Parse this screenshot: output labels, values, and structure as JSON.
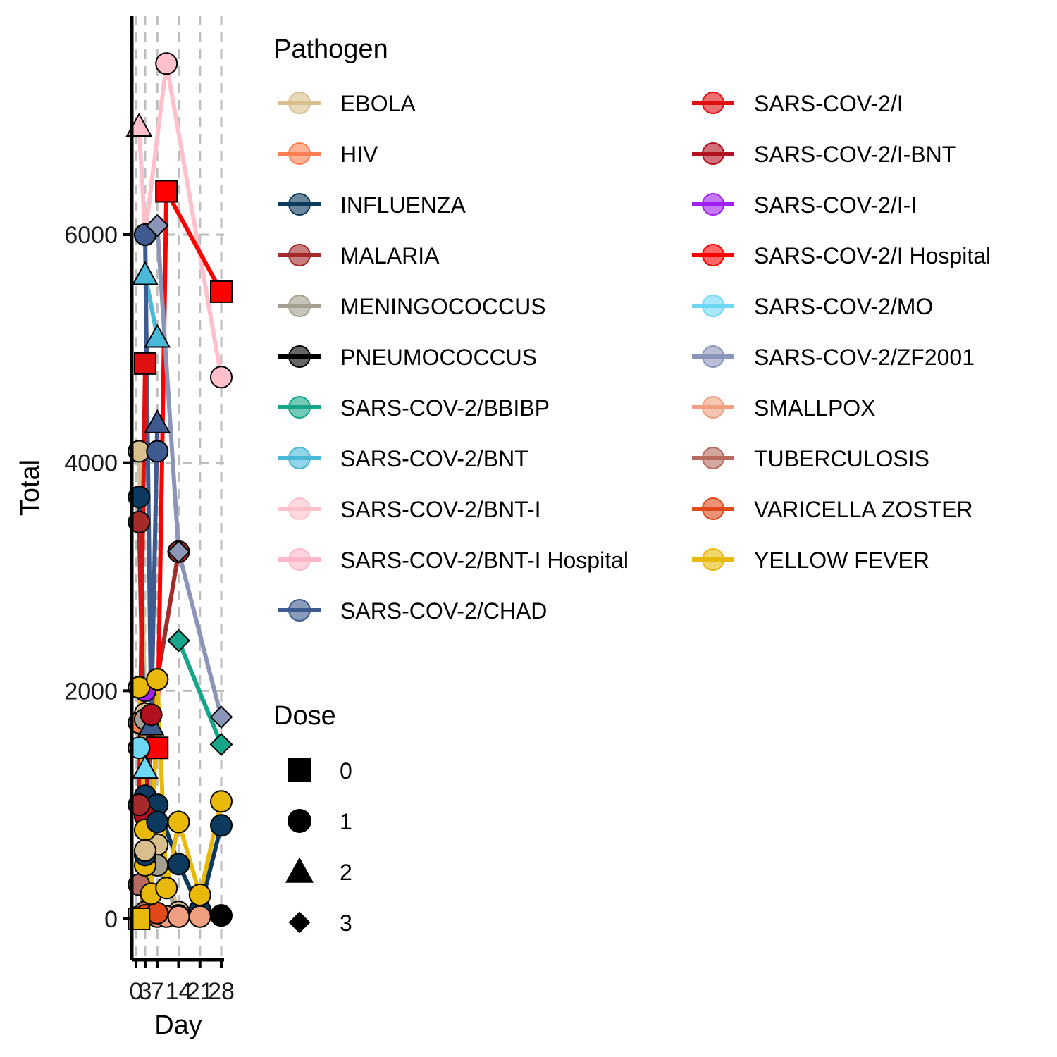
{
  "chart_data": {
    "type": "line",
    "xlabel": "Day",
    "ylabel": "Total",
    "x_ticks": [
      0,
      3,
      7,
      14,
      21,
      28
    ],
    "y_ticks": [
      0,
      2000,
      4000,
      6000
    ],
    "xlim": [
      -1,
      29
    ],
    "ylim": [
      -350,
      7600
    ],
    "grid": "dashed vertical lines at x ticks; short dashed horizontal segments at y ticks",
    "legend_pathogen_title": "Pathogen",
    "legend_dose_title": "Dose",
    "dose_shapes": [
      {
        "label": "0",
        "shape": "square"
      },
      {
        "label": "1",
        "shape": "circle"
      },
      {
        "label": "2",
        "shape": "triangle"
      },
      {
        "label": "3",
        "shape": "diamond"
      }
    ],
    "series": [
      {
        "name": "EBOLA",
        "color": "#D8C08E",
        "points": [
          {
            "x": 1,
            "y": 4100,
            "dose": "1"
          },
          {
            "x": 3,
            "y": 1800,
            "dose": "1"
          },
          {
            "x": 7,
            "y": 650,
            "dose": "1"
          },
          {
            "x": 14,
            "y": 60,
            "dose": "1"
          }
        ]
      },
      {
        "name": "HIV",
        "color": "#FF7F50",
        "points": [
          {
            "x": 1,
            "y": 1720,
            "dose": "1"
          },
          {
            "x": 3,
            "y": 60,
            "dose": "1"
          },
          {
            "x": 7,
            "y": 40,
            "dose": "1"
          }
        ]
      },
      {
        "name": "INFLUENZA",
        "color": "#0B3A5E",
        "points": [
          {
            "x": 1,
            "y": 3700,
            "dose": "1"
          },
          {
            "x": 3,
            "y": 1080,
            "dose": "1"
          },
          {
            "x": 7,
            "y": 1000,
            "dose": "1"
          },
          {
            "x": 14,
            "y": 480,
            "dose": "1"
          },
          {
            "x": 21,
            "y": 80,
            "dose": "1"
          },
          {
            "x": 28,
            "y": 820,
            "dose": "1"
          }
        ]
      },
      {
        "name": "MALARIA",
        "color": "#A52A2A",
        "points": [
          {
            "x": 1,
            "y": 3480,
            "dose": "1"
          },
          {
            "x": 3,
            "y": 900,
            "dose": "1"
          },
          {
            "x": 7,
            "y": 2100,
            "dose": "1"
          },
          {
            "x": 14,
            "y": 3220,
            "dose": "1"
          }
        ]
      },
      {
        "name": "MENINGOCOCCUS",
        "color": "#A3A090",
        "points": [
          {
            "x": 3,
            "y": 1750,
            "dose": "1"
          },
          {
            "x": 7,
            "y": 470,
            "dose": "1"
          },
          {
            "x": 14,
            "y": 30,
            "dose": "1"
          }
        ]
      },
      {
        "name": "PNEUMOCOCCUS",
        "color": "#000000",
        "points": [
          {
            "x": 1,
            "y": 20,
            "dose": "1"
          },
          {
            "x": 7,
            "y": 30,
            "dose": "1"
          },
          {
            "x": 14,
            "y": 20,
            "dose": "1"
          },
          {
            "x": 28,
            "y": 30,
            "dose": "1"
          }
        ]
      },
      {
        "name": "SARS-COV-2/BBIBP",
        "color": "#17A589",
        "points": [
          {
            "x": 14,
            "y": 2440,
            "dose": "3"
          },
          {
            "x": 28,
            "y": 1530,
            "dose": "3"
          }
        ]
      },
      {
        "name": "SARS-COV-2/BNT",
        "color": "#4AB8D8",
        "points": [
          {
            "x": 3,
            "y": 5650,
            "dose": "2"
          },
          {
            "x": 7,
            "y": 5100,
            "dose": "2"
          }
        ]
      },
      {
        "name": "SARS-COV-2/BNT-I",
        "color": "#FFC0CB",
        "points": [
          {
            "x": 1,
            "y": 6950,
            "dose": "2"
          },
          {
            "x": 3,
            "y": 6000,
            "dose": "1"
          },
          {
            "x": 10,
            "y": 7500,
            "dose": "1"
          },
          {
            "x": 28,
            "y": 4750,
            "dose": "1"
          }
        ]
      },
      {
        "name": "SARS-COV-2/BNT-I Hospital",
        "color": "#FFB6C8",
        "points": []
      },
      {
        "name": "SARS-COV-2/CHAD",
        "color": "#3E5A8E",
        "points": [
          {
            "x": 3,
            "y": 6000,
            "dose": "1"
          },
          {
            "x": 5,
            "y": 1700,
            "dose": "2"
          },
          {
            "x": 7,
            "y": 4350,
            "dose": "2"
          },
          {
            "x": 7,
            "y": 4100,
            "dose": "1"
          }
        ]
      },
      {
        "name": "SARS-COV-2/I",
        "color": "#E01010",
        "points": [
          {
            "x": 1,
            "y": 1000,
            "dose": "1"
          },
          {
            "x": 3,
            "y": 4870,
            "dose": "0"
          }
        ]
      },
      {
        "name": "SARS-COV-2/I-BNT",
        "color": "#B01020",
        "points": [
          {
            "x": 3,
            "y": 900,
            "dose": "1"
          },
          {
            "x": 5,
            "y": 1790,
            "dose": "1"
          }
        ]
      },
      {
        "name": "SARS-COV-2/I-I",
        "color": "#A020F0",
        "points": [
          {
            "x": 3,
            "y": 2000,
            "dose": "1"
          }
        ]
      },
      {
        "name": "SARS-COV-2/I Hospital",
        "color": "#FF0000",
        "points": [
          {
            "x": 7,
            "y": 1500,
            "dose": "0"
          },
          {
            "x": 10,
            "y": 6380,
            "dose": "0"
          },
          {
            "x": 28,
            "y": 5500,
            "dose": "0"
          }
        ]
      },
      {
        "name": "SARS-COV-2/MO",
        "color": "#6ED8F4",
        "points": [
          {
            "x": 1,
            "y": 1500,
            "dose": "1"
          },
          {
            "x": 3,
            "y": 1320,
            "dose": "2"
          }
        ]
      },
      {
        "name": "SARS-COV-2/ZF2001",
        "color": "#8A95B8",
        "points": [
          {
            "x": 7,
            "y": 6080,
            "dose": "3"
          },
          {
            "x": 14,
            "y": 3220,
            "dose": "3"
          },
          {
            "x": 28,
            "y": 1770,
            "dose": "3"
          }
        ]
      },
      {
        "name": "SMALLPOX",
        "color": "#F0A080",
        "points": [
          {
            "x": 7,
            "y": 20,
            "dose": "1"
          },
          {
            "x": 10,
            "y": 20,
            "dose": "1"
          },
          {
            "x": 14,
            "y": 20,
            "dose": "1"
          },
          {
            "x": 21,
            "y": 20,
            "dose": "1"
          }
        ]
      },
      {
        "name": "TUBERCULOSIS",
        "color": "#B86A60",
        "points": [
          {
            "x": 1,
            "y": 300,
            "dose": "1"
          },
          {
            "x": 3,
            "y": 60,
            "dose": "1"
          }
        ]
      },
      {
        "name": "VARICELLA ZOSTER",
        "color": "#E04A1A",
        "points": [
          {
            "x": 3,
            "y": 30,
            "dose": "1"
          },
          {
            "x": 7,
            "y": 50,
            "dose": "1"
          }
        ]
      },
      {
        "name": "YELLOW FEVER",
        "color": "#E8B80A",
        "points": [
          {
            "x": 1,
            "y": 2030,
            "dose": "1"
          },
          {
            "x": 3,
            "y": 780,
            "dose": "1"
          },
          {
            "x": 5,
            "y": 220,
            "dose": "1"
          },
          {
            "x": 7,
            "y": 2100,
            "dose": "1"
          },
          {
            "x": 10,
            "y": 270,
            "dose": "1"
          },
          {
            "x": 14,
            "y": 850,
            "dose": "1"
          },
          {
            "x": 21,
            "y": 210,
            "dose": "1"
          },
          {
            "x": 28,
            "y": 1030,
            "dose": "1"
          }
        ]
      }
    ],
    "extra_points": [
      {
        "series": "YELLOW FEVER",
        "x": 1,
        "y": 0,
        "dose": "0"
      },
      {
        "series": "YELLOW FEVER",
        "x": 3,
        "y": 470,
        "dose": "1"
      },
      {
        "series": "INFLUENZA",
        "x": 7,
        "y": 850,
        "dose": "1"
      },
      {
        "series": "INFLUENZA",
        "x": 3,
        "y": 560,
        "dose": "1"
      },
      {
        "series": "EBOLA",
        "x": 3,
        "y": 600,
        "dose": "1"
      },
      {
        "series": "MALARIA",
        "x": 1,
        "y": 1000,
        "dose": "1"
      }
    ]
  }
}
